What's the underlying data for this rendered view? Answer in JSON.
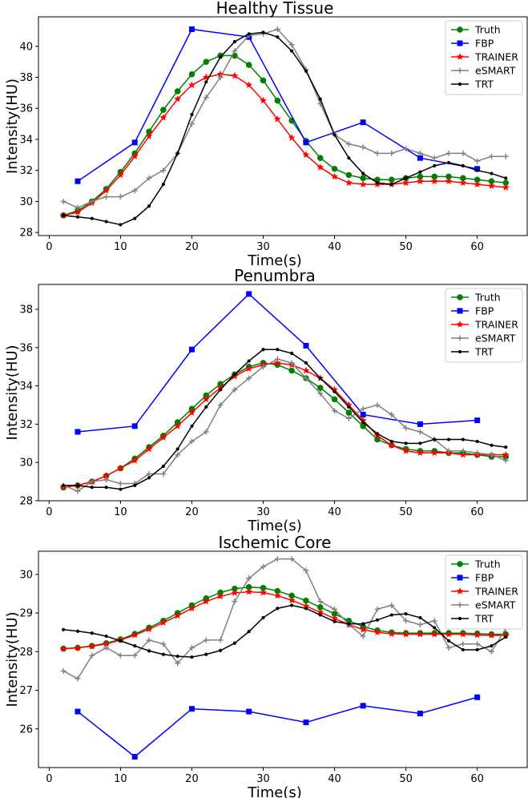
{
  "chart_data": [
    {
      "type": "line",
      "title": "Healthy Tissue",
      "xlabel": "Time(s)",
      "ylabel": "Intensity(HU)",
      "xlim": [
        -1.5,
        67
      ],
      "ylim": [
        27.8,
        41.9
      ],
      "xticks": [
        0,
        10,
        20,
        30,
        40,
        50,
        60
      ],
      "yticks": [
        28,
        30,
        32,
        34,
        36,
        38,
        40
      ],
      "legend": "top-right",
      "series": [
        {
          "name": "Truth",
          "color": "#008000",
          "marker": "circle",
          "x": [
            2,
            4,
            6,
            8,
            10,
            12,
            14,
            16,
            18,
            20,
            22,
            24,
            26,
            28,
            30,
            32,
            34,
            36,
            38,
            40,
            42,
            44,
            46,
            48,
            50,
            52,
            54,
            56,
            58,
            60,
            62,
            64
          ],
          "y": [
            29.1,
            29.4,
            30.0,
            30.8,
            31.9,
            33.1,
            34.5,
            35.9,
            37.1,
            38.2,
            39.0,
            39.4,
            39.4,
            38.8,
            37.8,
            36.5,
            35.2,
            33.9,
            32.8,
            32.1,
            31.7,
            31.5,
            31.4,
            31.4,
            31.5,
            31.6,
            31.6,
            31.6,
            31.5,
            31.4,
            31.3,
            31.2
          ]
        },
        {
          "name": "FBP",
          "color": "#0000ff",
          "marker": "square",
          "x": [
            4,
            12,
            20,
            28,
            36,
            44,
            52,
            60
          ],
          "y": [
            31.3,
            33.8,
            41.1,
            40.6,
            33.8,
            35.1,
            32.8,
            32.1
          ]
        },
        {
          "name": "TRAINER",
          "color": "#ff0000",
          "marker": "star",
          "x": [
            2,
            4,
            6,
            8,
            10,
            12,
            14,
            16,
            18,
            20,
            22,
            24,
            26,
            28,
            30,
            32,
            34,
            36,
            38,
            40,
            42,
            44,
            46,
            48,
            50,
            52,
            54,
            56,
            58,
            60,
            62,
            64
          ],
          "y": [
            29.1,
            29.3,
            29.9,
            30.7,
            31.7,
            32.9,
            34.2,
            35.4,
            36.6,
            37.5,
            38.0,
            38.2,
            38.1,
            37.5,
            36.5,
            35.3,
            34.1,
            33.0,
            32.2,
            31.6,
            31.2,
            31.1,
            31.1,
            31.1,
            31.2,
            31.3,
            31.3,
            31.3,
            31.2,
            31.1,
            31.0,
            30.9
          ]
        },
        {
          "name": "eSMART",
          "color": "#808080",
          "marker": "plus",
          "x": [
            2,
            4,
            6,
            8,
            10,
            12,
            14,
            16,
            18,
            20,
            22,
            24,
            26,
            28,
            30,
            32,
            34,
            36,
            38,
            40,
            42,
            44,
            46,
            48,
            50,
            52,
            54,
            56,
            58,
            60,
            62,
            64
          ],
          "y": [
            30.0,
            29.6,
            30.0,
            30.3,
            30.3,
            30.7,
            31.5,
            32.0,
            33.1,
            35.0,
            36.7,
            38.0,
            39.7,
            40.7,
            40.8,
            41.1,
            40.1,
            38.5,
            36.3,
            34.3,
            33.7,
            33.5,
            33.1,
            33.1,
            33.4,
            33.1,
            32.8,
            33.1,
            33.1,
            32.6,
            32.9,
            32.9
          ]
        },
        {
          "name": "TRT",
          "color": "#000000",
          "marker": "dot",
          "x": [
            2,
            4,
            6,
            8,
            10,
            12,
            14,
            16,
            18,
            20,
            22,
            24,
            26,
            28,
            30,
            32,
            34,
            36,
            38,
            40,
            42,
            44,
            46,
            48,
            50,
            52,
            54,
            56,
            58,
            60,
            62,
            64
          ],
          "y": [
            29.1,
            29.0,
            28.9,
            28.7,
            28.5,
            28.9,
            29.7,
            31.1,
            33.1,
            35.6,
            37.7,
            39.3,
            40.3,
            40.8,
            40.9,
            40.6,
            39.7,
            38.4,
            36.6,
            34.3,
            32.8,
            31.8,
            31.2,
            31.1,
            31.5,
            31.9,
            32.3,
            32.5,
            32.3,
            32.0,
            31.8,
            31.5
          ]
        }
      ]
    },
    {
      "type": "line",
      "title": "Penumbra",
      "xlabel": "Time(s)",
      "ylabel": "Intensity(HU)",
      "xlim": [
        -1.5,
        67
      ],
      "ylim": [
        28.0,
        39.3
      ],
      "xticks": [
        0,
        10,
        20,
        30,
        40,
        50,
        60
      ],
      "yticks": [
        28,
        30,
        32,
        34,
        36,
        38
      ],
      "legend": "top-right",
      "series": [
        {
          "name": "Truth",
          "color": "#008000",
          "marker": "circle",
          "x": [
            2,
            4,
            6,
            8,
            10,
            12,
            14,
            16,
            18,
            20,
            22,
            24,
            26,
            28,
            30,
            32,
            34,
            36,
            38,
            40,
            42,
            44,
            46,
            48,
            50,
            52,
            54,
            56,
            58,
            60,
            62,
            64
          ],
          "y": [
            28.7,
            28.8,
            29.0,
            29.3,
            29.7,
            30.2,
            30.8,
            31.4,
            32.1,
            32.8,
            33.5,
            34.1,
            34.6,
            35.0,
            35.2,
            35.1,
            34.8,
            34.4,
            33.9,
            33.3,
            32.6,
            31.9,
            31.2,
            30.9,
            30.7,
            30.6,
            30.6,
            30.5,
            30.5,
            30.4,
            30.3,
            30.3
          ]
        },
        {
          "name": "FBP",
          "color": "#0000ff",
          "marker": "square",
          "x": [
            4,
            12,
            20,
            28,
            36,
            44,
            52,
            60
          ],
          "y": [
            31.6,
            31.9,
            35.9,
            38.8,
            36.1,
            32.5,
            32.0,
            32.2
          ]
        },
        {
          "name": "TRAINER",
          "color": "#ff0000",
          "marker": "star",
          "x": [
            2,
            4,
            6,
            8,
            10,
            12,
            14,
            16,
            18,
            20,
            22,
            24,
            26,
            28,
            30,
            32,
            34,
            36,
            38,
            40,
            42,
            44,
            46,
            48,
            50,
            52,
            54,
            56,
            58,
            60,
            62,
            64
          ],
          "y": [
            28.7,
            28.8,
            29.0,
            29.3,
            29.7,
            30.1,
            30.7,
            31.3,
            31.9,
            32.6,
            33.3,
            33.9,
            34.5,
            34.9,
            35.1,
            35.2,
            35.1,
            34.8,
            34.4,
            33.8,
            33.0,
            32.2,
            31.4,
            30.9,
            30.6,
            30.5,
            30.5,
            30.5,
            30.4,
            30.4,
            30.4,
            30.4
          ]
        },
        {
          "name": "eSMART",
          "color": "#808080",
          "marker": "plus",
          "x": [
            2,
            4,
            6,
            8,
            10,
            12,
            14,
            16,
            18,
            20,
            22,
            24,
            26,
            28,
            30,
            32,
            34,
            36,
            38,
            40,
            42,
            44,
            46,
            48,
            50,
            52,
            54,
            56,
            58,
            60,
            62,
            64
          ],
          "y": [
            28.8,
            28.5,
            29.0,
            29.1,
            28.9,
            28.9,
            29.4,
            29.4,
            30.4,
            31.1,
            31.6,
            33.0,
            33.8,
            34.4,
            35.0,
            35.4,
            35.2,
            34.4,
            33.6,
            32.7,
            32.3,
            32.8,
            33.0,
            32.5,
            31.8,
            31.6,
            31.2,
            30.6,
            30.6,
            30.5,
            30.4,
            30.1
          ]
        },
        {
          "name": "TRT",
          "color": "#000000",
          "marker": "dot",
          "x": [
            2,
            4,
            6,
            8,
            10,
            12,
            14,
            16,
            18,
            20,
            22,
            24,
            26,
            28,
            30,
            32,
            34,
            36,
            38,
            40,
            42,
            44,
            46,
            48,
            50,
            52,
            54,
            56,
            58,
            60,
            62,
            64
          ],
          "y": [
            28.8,
            28.8,
            28.7,
            28.7,
            28.6,
            28.8,
            29.2,
            29.8,
            30.7,
            31.9,
            32.9,
            33.8,
            34.6,
            35.3,
            35.9,
            35.9,
            35.7,
            35.2,
            34.4,
            33.7,
            32.9,
            32.1,
            31.5,
            31.1,
            31.0,
            31.0,
            31.2,
            31.2,
            31.2,
            31.1,
            30.9,
            30.8
          ]
        }
      ]
    },
    {
      "type": "line",
      "title": "Ischemic Core",
      "xlabel": "Time(s)",
      "ylabel": "Intensity(HU)",
      "xlim": [
        -1.5,
        67
      ],
      "ylim": [
        25.0,
        30.6
      ],
      "xticks": [
        0,
        10,
        20,
        30,
        40,
        50,
        60
      ],
      "yticks": [
        26,
        27,
        28,
        29,
        30
      ],
      "legend": "top-right",
      "series": [
        {
          "name": "Truth",
          "color": "#008000",
          "marker": "circle",
          "x": [
            2,
            4,
            6,
            8,
            10,
            12,
            14,
            16,
            18,
            20,
            22,
            24,
            26,
            28,
            30,
            32,
            34,
            36,
            38,
            40,
            42,
            44,
            46,
            48,
            50,
            52,
            54,
            56,
            58,
            60,
            62,
            64
          ],
          "y": [
            28.08,
            28.1,
            28.15,
            28.22,
            28.32,
            28.46,
            28.62,
            28.8,
            29.0,
            29.2,
            29.38,
            29.53,
            29.63,
            29.67,
            29.65,
            29.57,
            29.45,
            29.32,
            29.15,
            28.98,
            28.8,
            28.65,
            28.55,
            28.5,
            28.48,
            28.48,
            28.48,
            28.48,
            28.48,
            28.47,
            28.45,
            28.45
          ]
        },
        {
          "name": "FBP",
          "color": "#0000ff",
          "marker": "square",
          "x": [
            4,
            12,
            20,
            28,
            36,
            44,
            52,
            60
          ],
          "y": [
            26.45,
            25.28,
            26.52,
            26.45,
            26.17,
            26.6,
            26.4,
            26.82
          ]
        },
        {
          "name": "TRAINER",
          "color": "#ff0000",
          "marker": "star",
          "x": [
            2,
            4,
            6,
            8,
            10,
            12,
            14,
            16,
            18,
            20,
            22,
            24,
            26,
            28,
            30,
            32,
            34,
            36,
            38,
            40,
            42,
            44,
            46,
            48,
            50,
            52,
            54,
            56,
            58,
            60,
            62,
            64
          ],
          "y": [
            28.07,
            28.1,
            28.14,
            28.2,
            28.3,
            28.43,
            28.58,
            28.75,
            28.93,
            29.12,
            29.3,
            29.43,
            29.52,
            29.55,
            29.53,
            29.45,
            29.33,
            29.18,
            29.02,
            28.86,
            28.7,
            28.57,
            28.5,
            28.46,
            28.45,
            28.45,
            28.45,
            28.45,
            28.45,
            28.43,
            28.42,
            28.42
          ]
        },
        {
          "name": "eSMART",
          "color": "#808080",
          "marker": "plus",
          "x": [
            2,
            4,
            6,
            8,
            10,
            12,
            14,
            16,
            18,
            20,
            22,
            24,
            26,
            28,
            30,
            32,
            34,
            36,
            38,
            40,
            42,
            44,
            46,
            48,
            50,
            52,
            54,
            56,
            58,
            60,
            62,
            64
          ],
          "y": [
            27.5,
            27.3,
            27.9,
            28.1,
            27.9,
            27.9,
            28.3,
            28.2,
            27.7,
            28.1,
            28.3,
            28.3,
            29.3,
            29.9,
            30.2,
            30.4,
            30.4,
            30.1,
            29.3,
            29.1,
            28.7,
            28.4,
            29.1,
            29.2,
            28.8,
            28.7,
            28.8,
            28.1,
            28.2,
            28.2,
            28.0,
            28.6
          ]
        },
        {
          "name": "TRT",
          "color": "#000000",
          "marker": "dot",
          "x": [
            2,
            4,
            6,
            8,
            10,
            12,
            14,
            16,
            18,
            20,
            22,
            24,
            26,
            28,
            30,
            32,
            34,
            36,
            38,
            40,
            42,
            44,
            46,
            48,
            50,
            52,
            54,
            56,
            58,
            60,
            62,
            64
          ],
          "y": [
            28.57,
            28.53,
            28.48,
            28.4,
            28.28,
            28.15,
            28.02,
            27.93,
            27.88,
            27.86,
            27.93,
            28.03,
            28.22,
            28.52,
            28.88,
            29.12,
            29.2,
            29.12,
            28.95,
            28.78,
            28.72,
            28.72,
            28.82,
            28.95,
            28.98,
            28.88,
            28.62,
            28.28,
            28.05,
            28.05,
            28.15,
            28.38
          ]
        }
      ]
    }
  ]
}
